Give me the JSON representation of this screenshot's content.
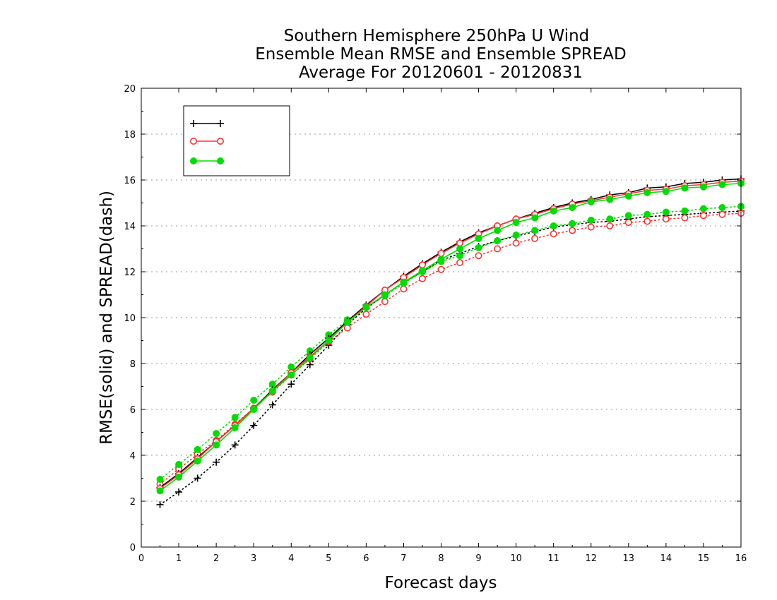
{
  "chart_data": {
    "type": "line",
    "title": [
      "Southern Hemisphere 250hPa U Wind",
      "Ensemble Mean RMSE and Ensemble SPREAD",
      "Average For 20120601 - 20120831"
    ],
    "xlabel": "Forecast days",
    "ylabel": "RMSE(solid) and SPREAD(dash)",
    "xlim": [
      0,
      16
    ],
    "ylim": [
      0,
      20
    ],
    "xticks": [
      "0",
      "1",
      "2",
      "3",
      "4",
      "5",
      "6",
      "7",
      "8",
      "9",
      "10",
      "11",
      "12",
      "13",
      "14",
      "15",
      "16"
    ],
    "yticks": [
      "0",
      "2",
      "4",
      "6",
      "8",
      "10",
      "12",
      "14",
      "16",
      "18",
      "20"
    ],
    "grid": "dotted horizontal",
    "legend_position": "top-left",
    "x": [
      0.5,
      1,
      1.5,
      2,
      2.5,
      3,
      3.5,
      4,
      4.5,
      5,
      5.5,
      6,
      6.5,
      7,
      7.5,
      8,
      8.5,
      9,
      9.5,
      10,
      10.5,
      11,
      11.5,
      12,
      12.5,
      13,
      13.5,
      14,
      14.5,
      15,
      15.5,
      16
    ],
    "series": [
      {
        "name": "",
        "metric": "RMSE",
        "style": "solid",
        "marker": "plus",
        "color": "#000000",
        "values": [
          2.6,
          3.2,
          3.9,
          4.6,
          5.3,
          6.05,
          6.85,
          7.6,
          8.4,
          9.1,
          9.85,
          10.55,
          11.2,
          11.8,
          12.35,
          12.85,
          13.3,
          13.7,
          14.0,
          14.3,
          14.55,
          14.8,
          15.0,
          15.15,
          15.35,
          15.45,
          15.65,
          15.7,
          15.85,
          15.9,
          16.0,
          16.05
        ]
      },
      {
        "name": "",
        "metric": "RMSE",
        "style": "solid",
        "marker": "open-circle",
        "color": "#ff3030",
        "values": [
          2.55,
          3.15,
          3.85,
          4.6,
          5.3,
          6.05,
          6.8,
          7.6,
          8.3,
          9.0,
          9.8,
          10.5,
          11.2,
          11.75,
          12.3,
          12.8,
          13.25,
          13.65,
          14.0,
          14.3,
          14.5,
          14.75,
          14.95,
          15.1,
          15.25,
          15.4,
          15.55,
          15.6,
          15.75,
          15.8,
          15.9,
          15.95
        ]
      },
      {
        "name": "",
        "metric": "RMSE",
        "style": "solid",
        "marker": "filled-circle",
        "color": "#00dd00",
        "values": [
          2.45,
          3.05,
          3.75,
          4.45,
          5.2,
          6.0,
          6.8,
          7.5,
          8.25,
          9.0,
          9.8,
          10.45,
          11.0,
          11.55,
          12.05,
          12.55,
          13.0,
          13.45,
          13.8,
          14.15,
          14.35,
          14.65,
          14.8,
          15.05,
          15.15,
          15.3,
          15.45,
          15.5,
          15.65,
          15.7,
          15.8,
          15.85
        ]
      },
      {
        "name": "",
        "metric": "SPREAD",
        "style": "dotted",
        "marker": "plus",
        "color": "#000000",
        "values": [
          1.85,
          2.4,
          3.0,
          3.7,
          4.45,
          5.3,
          6.2,
          7.1,
          7.95,
          8.8,
          9.7,
          10.4,
          11.0,
          11.55,
          12.0,
          12.5,
          12.8,
          13.1,
          13.35,
          13.55,
          13.75,
          13.95,
          14.05,
          14.15,
          14.2,
          14.3,
          14.4,
          14.45,
          14.5,
          14.55,
          14.6,
          14.65
        ]
      },
      {
        "name": "",
        "metric": "SPREAD",
        "style": "dotted",
        "marker": "open-circle",
        "color": "#ff3030",
        "values": [
          2.75,
          3.4,
          4.05,
          4.65,
          5.35,
          6.05,
          6.75,
          7.5,
          8.2,
          8.95,
          9.55,
          10.15,
          10.7,
          11.25,
          11.7,
          12.1,
          12.4,
          12.7,
          13.0,
          13.25,
          13.45,
          13.65,
          13.8,
          13.95,
          14.0,
          14.15,
          14.2,
          14.3,
          14.35,
          14.45,
          14.5,
          14.55
        ]
      },
      {
        "name": "",
        "metric": "SPREAD",
        "style": "dotted",
        "marker": "filled-circle",
        "color": "#00dd00",
        "values": [
          2.95,
          3.6,
          4.25,
          4.95,
          5.65,
          6.4,
          7.1,
          7.85,
          8.55,
          9.25,
          9.9,
          10.45,
          10.95,
          11.5,
          12.0,
          12.45,
          12.7,
          13.05,
          13.35,
          13.6,
          13.8,
          14.0,
          14.1,
          14.25,
          14.3,
          14.45,
          14.5,
          14.6,
          14.65,
          14.75,
          14.8,
          14.85
        ]
      }
    ],
    "legend": [
      {
        "label": "",
        "marker": "plus",
        "color": "#000000"
      },
      {
        "label": "",
        "marker": "open-circle",
        "color": "#ff3030"
      },
      {
        "label": "",
        "marker": "filled-circle",
        "color": "#00dd00"
      }
    ]
  }
}
